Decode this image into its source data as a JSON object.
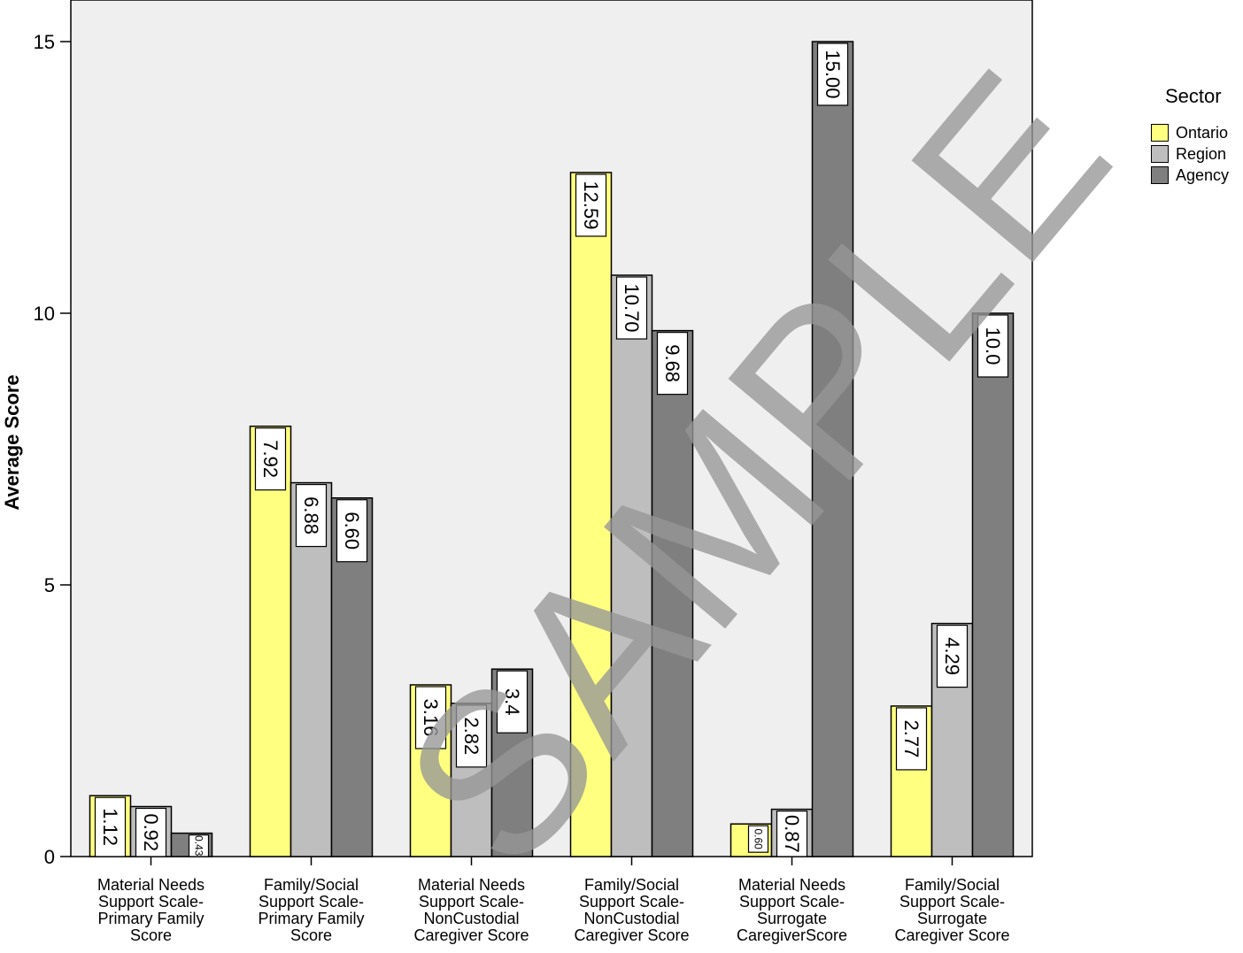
{
  "chart_data": {
    "type": "bar",
    "ylabel": "Average  Score",
    "ylim": [
      0,
      15
    ],
    "yticks": [
      0,
      5,
      10,
      15
    ],
    "legend_title": "Sector",
    "legend_position": "right",
    "background": "#efefef",
    "categories": [
      [
        "Material Needs",
        "Support Scale-",
        "Primary Family",
        "Score"
      ],
      [
        "Family/Social",
        "Support Scale-",
        "Primary Family",
        "Score"
      ],
      [
        "Material Needs",
        "Support Scale-",
        "NonCustodial",
        "Caregiver Score"
      ],
      [
        "Family/Social",
        "Support Scale-",
        "NonCustodial",
        "Caregiver Score"
      ],
      [
        "Material Needs",
        "Support Scale-",
        "Surrogate",
        "CaregiverScore"
      ],
      [
        "Family/Social",
        "Support Scale-",
        "Surrogate",
        "Caregiver Score"
      ]
    ],
    "series": [
      {
        "name": "Ontario",
        "color": "#ffff80",
        "values": [
          1.12,
          7.92,
          3.16,
          12.59,
          0.6,
          2.77
        ],
        "labels": [
          "1.12",
          "7.92",
          "3.16",
          "12.59",
          "0.60",
          "2.77"
        ]
      },
      {
        "name": "Region",
        "color": "#bebebe",
        "values": [
          0.92,
          6.88,
          2.82,
          10.7,
          0.87,
          4.29
        ],
        "labels": [
          "0.92",
          "6.88",
          "2.82",
          "10.70",
          "0.87",
          "4.29"
        ]
      },
      {
        "name": "Agency",
        "color": "#7f7f7f",
        "values": [
          0.43,
          6.6,
          3.45,
          9.68,
          15.0,
          10.0
        ],
        "labels": [
          "0.43",
          "6.60",
          "3.4",
          "9.68",
          "15.00",
          "10.0"
        ]
      }
    ]
  },
  "watermark": "SAMPLE"
}
